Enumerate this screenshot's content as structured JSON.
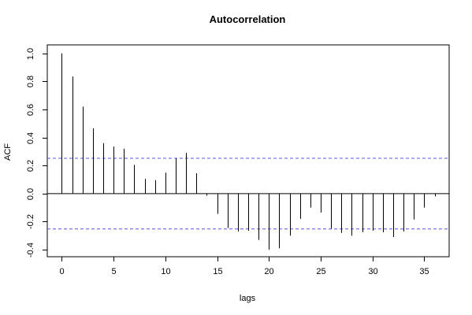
{
  "chart_data": {
    "type": "bar",
    "title": "Autocorrelation",
    "xlabel": "lags",
    "ylabel": "ACF",
    "xlim": [
      -1.4,
      37.4
    ],
    "ylim": [
      -0.45,
      1.06
    ],
    "x_ticks": [
      0,
      5,
      10,
      15,
      20,
      25,
      30,
      35
    ],
    "y_ticks": [
      -0.4,
      -0.2,
      0.0,
      0.2,
      0.4,
      0.6,
      0.8,
      1.0
    ],
    "y_tick_labels": [
      "-0.4",
      "-0.2",
      "0.0",
      "0.2",
      "0.4",
      "0.6",
      "0.8",
      "1.0"
    ],
    "grid": false,
    "x": [
      0,
      1,
      2,
      3,
      4,
      5,
      6,
      7,
      8,
      9,
      10,
      11,
      12,
      13,
      14,
      15,
      16,
      17,
      18,
      19,
      20,
      21,
      22,
      23,
      24,
      25,
      26,
      27,
      28,
      29,
      30,
      31,
      32,
      33,
      34,
      35,
      36
    ],
    "values": [
      1.0,
      0.835,
      0.62,
      0.465,
      0.36,
      0.335,
      0.32,
      0.205,
      0.105,
      0.095,
      0.15,
      0.25,
      0.29,
      0.145,
      -0.015,
      -0.145,
      -0.245,
      -0.27,
      -0.265,
      -0.33,
      -0.4,
      -0.39,
      -0.3,
      -0.18,
      -0.1,
      -0.135,
      -0.25,
      -0.28,
      -0.3,
      -0.275,
      -0.265,
      -0.275,
      -0.31,
      -0.27,
      -0.185,
      -0.1,
      -0.02
    ],
    "confidence_band": 0.252,
    "confidence_color": "#5555ee",
    "bar_color": "#000000"
  }
}
